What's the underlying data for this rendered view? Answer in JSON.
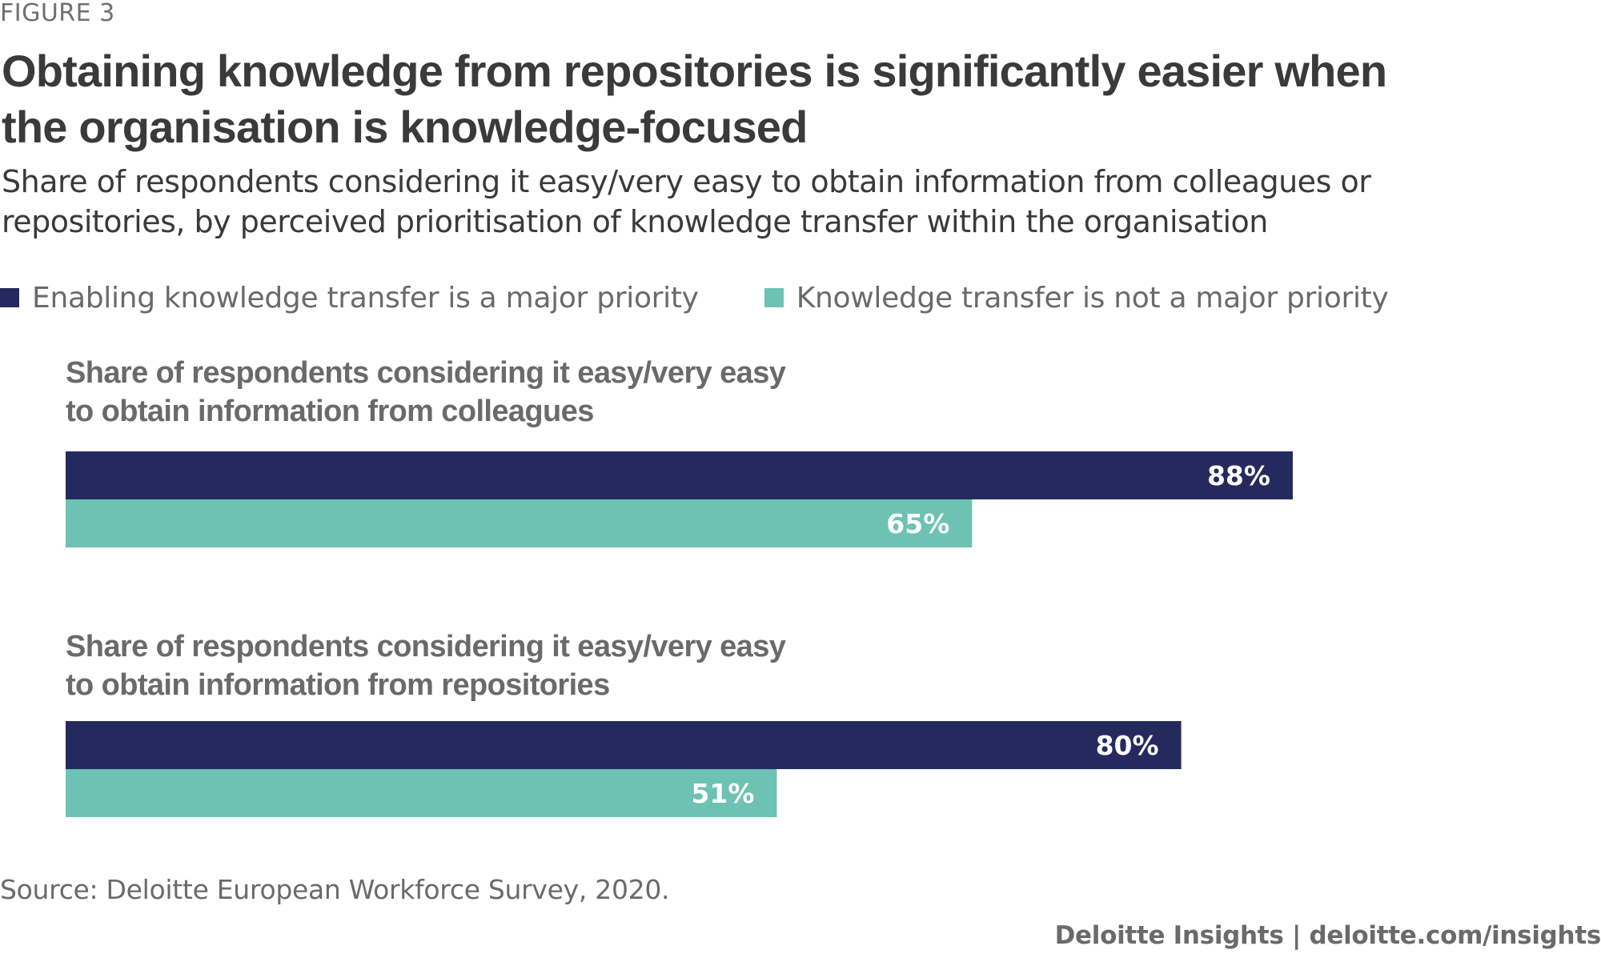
{
  "figure_label": "FIGURE 3",
  "title_lines": [
    "Obtaining knowledge from repositories is significantly easier when",
    "the organisation is knowledge-focused"
  ],
  "subtitle_lines": [
    "Share of respondents considering it easy/very easy to obtain information from colleagues or",
    "repositories, by perceived prioritisation of knowledge transfer within the organisation"
  ],
  "legend": [
    {
      "label": "Enabling knowledge transfer is a major priority",
      "color": "#252a5e"
    },
    {
      "label": "Knowledge transfer is not a major priority",
      "color": "#6dc2b3"
    }
  ],
  "source": "Source: Deloitte European Workforce Survey, 2020.",
  "credit": "Deloitte Insights | deloitte.com/insights",
  "colors": {
    "series_major": "#252a5e",
    "series_not_major": "#6dc2b3",
    "bar_label": "#ffffff"
  },
  "chart_data": {
    "type": "bar",
    "orientation": "horizontal",
    "value_format": "percent",
    "xlim": [
      0,
      100
    ],
    "grid": false,
    "legend_position": "top-left",
    "categories": [
      [
        "Share of respondents considering it easy/very easy",
        "to obtain information from colleagues"
      ],
      [
        "Share of respondents considering it easy/very easy",
        "to obtain information from repositories"
      ]
    ],
    "series": [
      {
        "name": "Enabling knowledge transfer is a major priority",
        "color": "#252a5e",
        "values": [
          88,
          80
        ],
        "labels": [
          "88%",
          "80%"
        ]
      },
      {
        "name": "Knowledge transfer is not a major priority",
        "color": "#6dc2b3",
        "values": [
          65,
          51
        ],
        "labels": [
          "65%",
          "51%"
        ]
      }
    ]
  }
}
